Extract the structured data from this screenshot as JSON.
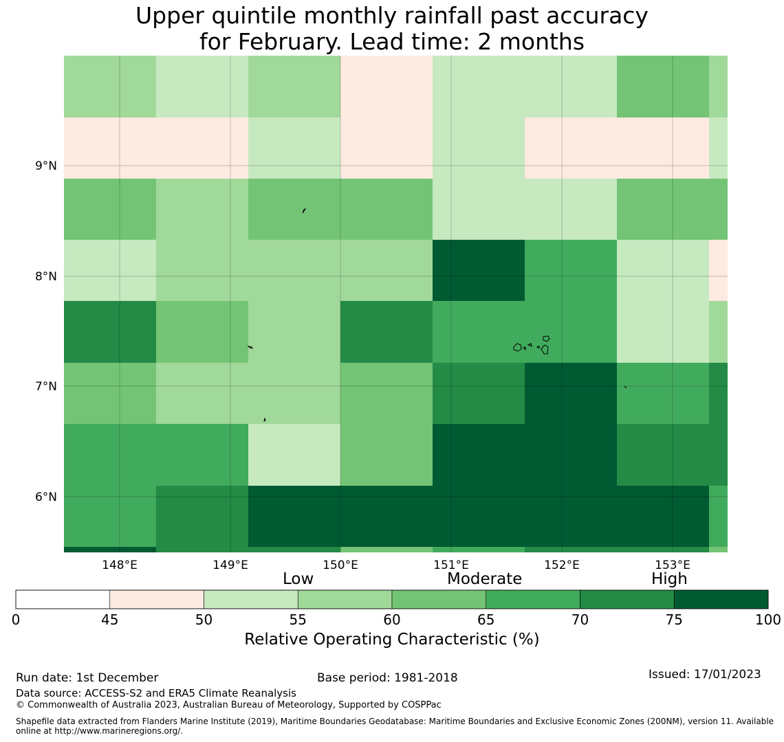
{
  "title": {
    "line1": "Upper quintile monthly rainfall past accuracy",
    "line2": "for February. Lead time: 2 months"
  },
  "chart_data": {
    "type": "heatmap",
    "title": "Upper quintile monthly rainfall past accuracy for February. Lead time: 2 months",
    "x_ticks": [
      "148°E",
      "149°E",
      "150°E",
      "151°E",
      "152°E",
      "153°E"
    ],
    "y_ticks": [
      "9°N",
      "8°N",
      "7°N",
      "6°N"
    ],
    "x_range_deg": [
      147.5,
      153.5
    ],
    "y_range_deg": [
      5.5,
      10.0
    ],
    "cell_value_units": "ROC (%) bin lower bound",
    "rows": [
      {
        "band": "top",
        "cells": [
          55,
          50,
          55,
          45,
          50,
          50,
          60,
          55
        ]
      },
      {
        "band": "r2",
        "cells": [
          45,
          45,
          50,
          45,
          50,
          45,
          45,
          50
        ]
      },
      {
        "band": "r3",
        "cells": [
          60,
          55,
          60,
          60,
          50,
          50,
          60,
          60
        ]
      },
      {
        "band": "r4",
        "cells": [
          50,
          55,
          55,
          55,
          75,
          65,
          50,
          45
        ]
      },
      {
        "band": "r5",
        "cells": [
          70,
          60,
          55,
          70,
          65,
          65,
          50,
          55
        ]
      },
      {
        "band": "r6",
        "cells": [
          60,
          55,
          55,
          60,
          70,
          75,
          65,
          70
        ]
      },
      {
        "band": "r7",
        "cells": [
          65,
          65,
          50,
          60,
          75,
          75,
          70,
          70
        ]
      },
      {
        "band": "r8",
        "cells": [
          65,
          70,
          75,
          75,
          75,
          75,
          75,
          65
        ]
      },
      {
        "band": "edge",
        "cells": [
          75,
          70,
          70,
          60,
          65,
          70,
          70,
          60
        ]
      }
    ],
    "colorbar": {
      "label": "Relative Operating Characteristic (%)",
      "ticks": [
        "0",
        "45",
        "50",
        "55",
        "60",
        "65",
        "70",
        "75",
        "100"
      ],
      "bins": [
        {
          "range": [
            0,
            45
          ],
          "color": "#ffffff"
        },
        {
          "range": [
            45,
            50
          ],
          "color": "#fdeae1"
        },
        {
          "range": [
            50,
            55
          ],
          "color": "#c7e9c0"
        },
        {
          "range": [
            55,
            60
          ],
          "color": "#a1d99b"
        },
        {
          "range": [
            60,
            65
          ],
          "color": "#74c476"
        },
        {
          "range": [
            65,
            70
          ],
          "color": "#41ab5d"
        },
        {
          "range": [
            70,
            75
          ],
          "color": "#238b45"
        },
        {
          "range": [
            75,
            100
          ],
          "color": "#005a32"
        }
      ],
      "categories": [
        "Low",
        "Moderate",
        "High"
      ]
    }
  },
  "footer": {
    "run_date": "Run date: 1st December",
    "base_period": "Base period: 1981-2018",
    "issued": "Issued: 17/01/2023",
    "data_source": "Data source: ACCESS-S2 and ERA5 Climate Reanalysis",
    "copyright": "© Commonwealth of Australia 2023, Australian Bureau of Meteorology, Supported by COSPPac",
    "shapefile_line1": "Shapefile data extracted from Flanders Marine Institute (2019), Maritime Boundaries Geodatabase: Maritime Boundaries and Exclusive Economic Zones (200NM), version 11. Available",
    "shapefile_line2": "online at http://www.marineregions.org/."
  }
}
